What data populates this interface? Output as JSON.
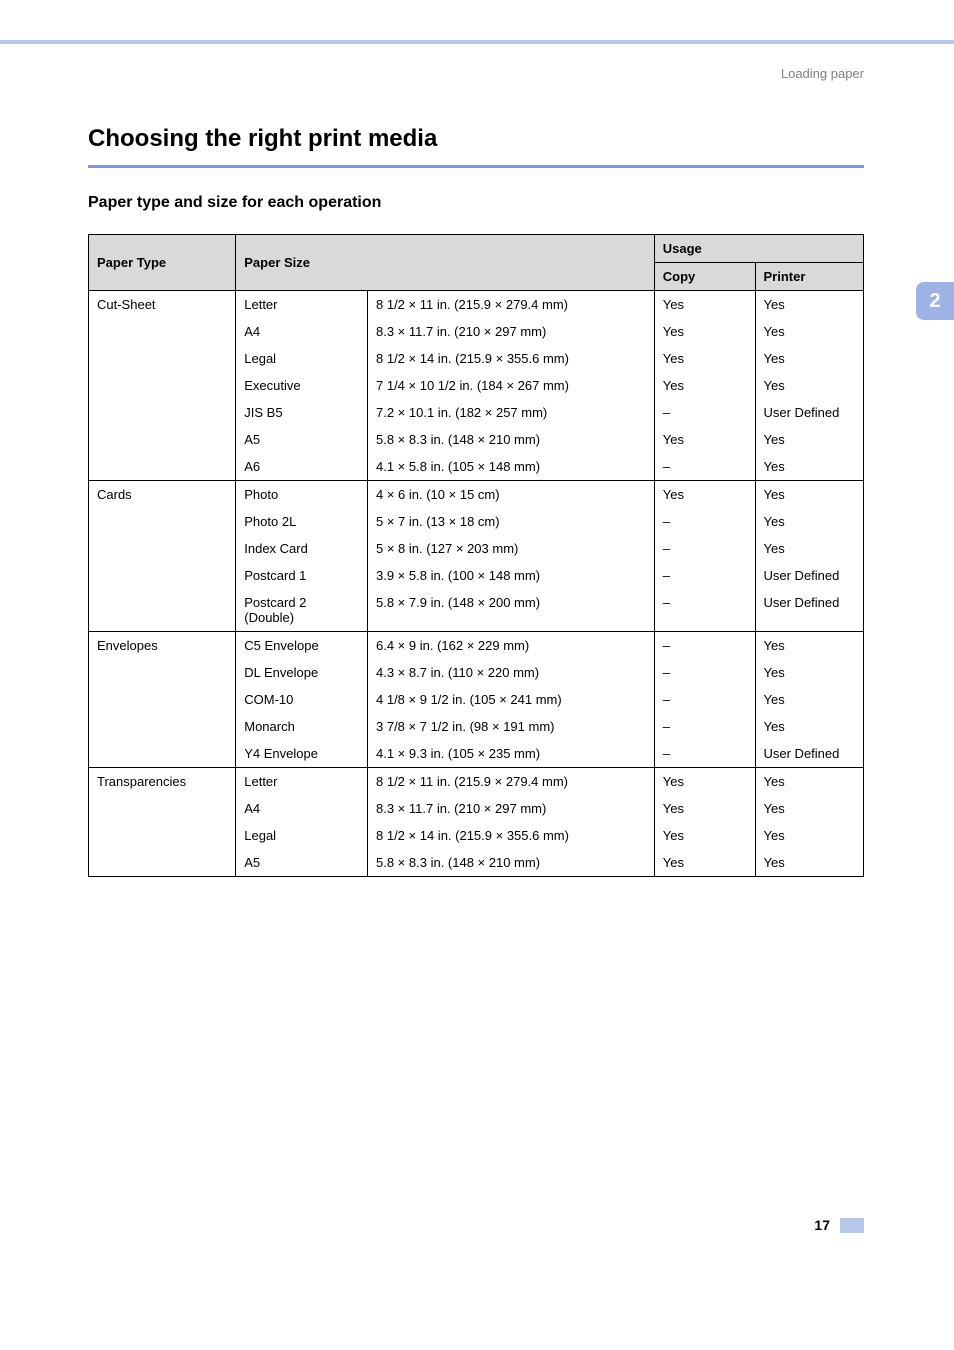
{
  "breadcrumb": "Loading paper",
  "chapter_number": "2",
  "page_number": "17",
  "section_title": "Choosing the right print media",
  "subsection_title": "Paper type and size for each operation",
  "table": {
    "headers": {
      "paper_type": "Paper Type",
      "paper_size": "Paper Size",
      "usage": "Usage",
      "copy": "Copy",
      "printer": "Printer"
    },
    "groups": [
      {
        "type": "Cut-Sheet",
        "rows": [
          {
            "name": "Letter",
            "dim": "8 1/2 × 11 in. (215.9 × 279.4 mm)",
            "copy": "Yes",
            "printer": "Yes"
          },
          {
            "name": "A4",
            "dim": "8.3 × 11.7 in. (210 × 297 mm)",
            "copy": "Yes",
            "printer": "Yes"
          },
          {
            "name": "Legal",
            "dim": "8 1/2 × 14 in. (215.9 × 355.6 mm)",
            "copy": "Yes",
            "printer": "Yes"
          },
          {
            "name": "Executive",
            "dim": "7 1/4 × 10 1/2 in. (184 × 267 mm)",
            "copy": "Yes",
            "printer": "Yes"
          },
          {
            "name": "JIS B5",
            "dim": "7.2 × 10.1 in. (182 × 257 mm)",
            "copy": "–",
            "printer": "User Defined"
          },
          {
            "name": "A5",
            "dim": "5.8 × 8.3 in. (148 × 210 mm)",
            "copy": "Yes",
            "printer": "Yes"
          },
          {
            "name": "A6",
            "dim": "4.1 × 5.8 in. (105 × 148 mm)",
            "copy": "–",
            "printer": "Yes"
          }
        ]
      },
      {
        "type": "Cards",
        "rows": [
          {
            "name": "Photo",
            "dim": "4 × 6 in. (10 × 15 cm)",
            "copy": "Yes",
            "printer": "Yes"
          },
          {
            "name": "Photo 2L",
            "dim": "5 × 7 in. (13 × 18 cm)",
            "copy": "–",
            "printer": "Yes"
          },
          {
            "name": "Index Card",
            "dim": "5 × 8 in. (127 × 203 mm)",
            "copy": "–",
            "printer": "Yes"
          },
          {
            "name": "Postcard 1",
            "dim": "3.9 × 5.8 in. (100 × 148 mm)",
            "copy": "–",
            "printer": "User Defined"
          },
          {
            "name": "Postcard 2 (Double)",
            "dim": "5.8 × 7.9 in. (148 × 200 mm)",
            "copy": "–",
            "printer": "User Defined"
          }
        ]
      },
      {
        "type": "Envelopes",
        "rows": [
          {
            "name": "C5 Envelope",
            "dim": "6.4 × 9 in. (162 × 229 mm)",
            "copy": "–",
            "printer": "Yes"
          },
          {
            "name": "DL Envelope",
            "dim": "4.3 × 8.7 in. (110 × 220 mm)",
            "copy": "–",
            "printer": "Yes"
          },
          {
            "name": "COM-10",
            "dim": "4 1/8 × 9 1/2 in. (105 × 241 mm)",
            "copy": "–",
            "printer": "Yes"
          },
          {
            "name": "Monarch",
            "dim": "3 7/8 × 7 1/2 in. (98 × 191 mm)",
            "copy": "–",
            "printer": "Yes"
          },
          {
            "name": "Y4 Envelope",
            "dim": "4.1 × 9.3 in. (105 × 235 mm)",
            "copy": "–",
            "printer": "User Defined"
          }
        ]
      },
      {
        "type": "Transparencies",
        "rows": [
          {
            "name": "Letter",
            "dim": "8 1/2 × 11 in. (215.9 × 279.4 mm)",
            "copy": "Yes",
            "printer": "Yes"
          },
          {
            "name": "A4",
            "dim": "8.3 × 11.7 in. (210 × 297 mm)",
            "copy": "Yes",
            "printer": "Yes"
          },
          {
            "name": "Legal",
            "dim": "8 1/2 × 14 in. (215.9 × 355.6 mm)",
            "copy": "Yes",
            "printer": "Yes"
          },
          {
            "name": "A5",
            "dim": "5.8 × 8.3 in. (148 × 210 mm)",
            "copy": "Yes",
            "printer": "Yes"
          }
        ]
      }
    ]
  },
  "colors": {
    "top_bar": "#b7c6ea",
    "title_rule": "#7a9ae0",
    "tab_bg": "#9db2e6",
    "header_bg": "#d9d9d9",
    "breadcrumb": "#808080"
  },
  "col_widths": {
    "type": "19%",
    "name": "17%",
    "dim": "37%",
    "copy": "13%",
    "printer": "14%"
  }
}
